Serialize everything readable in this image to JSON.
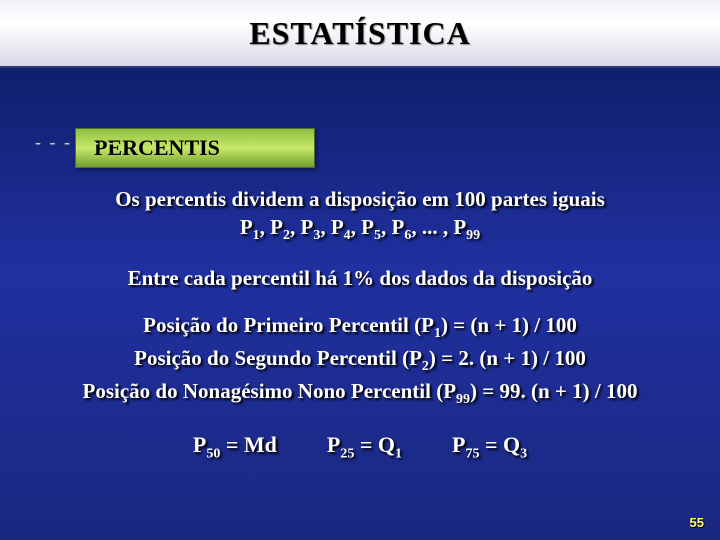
{
  "header": {
    "title": "ESTATÍSTICA"
  },
  "section": {
    "label": "PERCENTIS",
    "dashes": "- - - - - -"
  },
  "body": {
    "intro_line": "Os percentis dividem a disposição em 100 partes iguais",
    "p_list_prefix": "P",
    "p_list_items": [
      "1",
      "2",
      "3",
      "4",
      "5",
      "6"
    ],
    "p_list_ellipsis": "...",
    "p_list_last": "99",
    "between_line": "Entre cada percentil há 1% dos dados da disposição",
    "pos1_pre": "Posição do Primeiro Percentil (P",
    "pos1_sub": "1",
    "pos1_post": ") = (n + 1) / 100",
    "pos2_pre": "Posição do Segundo Percentil (P",
    "pos2_sub": "2",
    "pos2_post": ") = 2. (n + 1) / 100",
    "pos99_pre": "Posição do Nonagésimo Nono Percentil (P",
    "pos99_sub": "99",
    "pos99_post": ") = 99. (n + 1) / 100",
    "eq1": {
      "p_sub": "50",
      "eq_text": " = Md"
    },
    "eq2": {
      "p_sub": "25",
      "eq_text": " = Q",
      "q_sub": "1"
    },
    "eq3": {
      "p_sub": "75",
      "eq_text": " = Q",
      "q_sub": "3"
    }
  },
  "page_number": "55",
  "colors": {
    "bg_top": "#0a1a5a",
    "bg_mid": "#2030a0",
    "header_grad_light": "#ffffff",
    "header_grad_dark": "#d8d8e8",
    "label_green_top": "#8fbf3f",
    "label_green_mid": "#c8e868",
    "text_white": "#ffffff",
    "text_black": "#000000",
    "page_num_color": "#ffff66"
  }
}
